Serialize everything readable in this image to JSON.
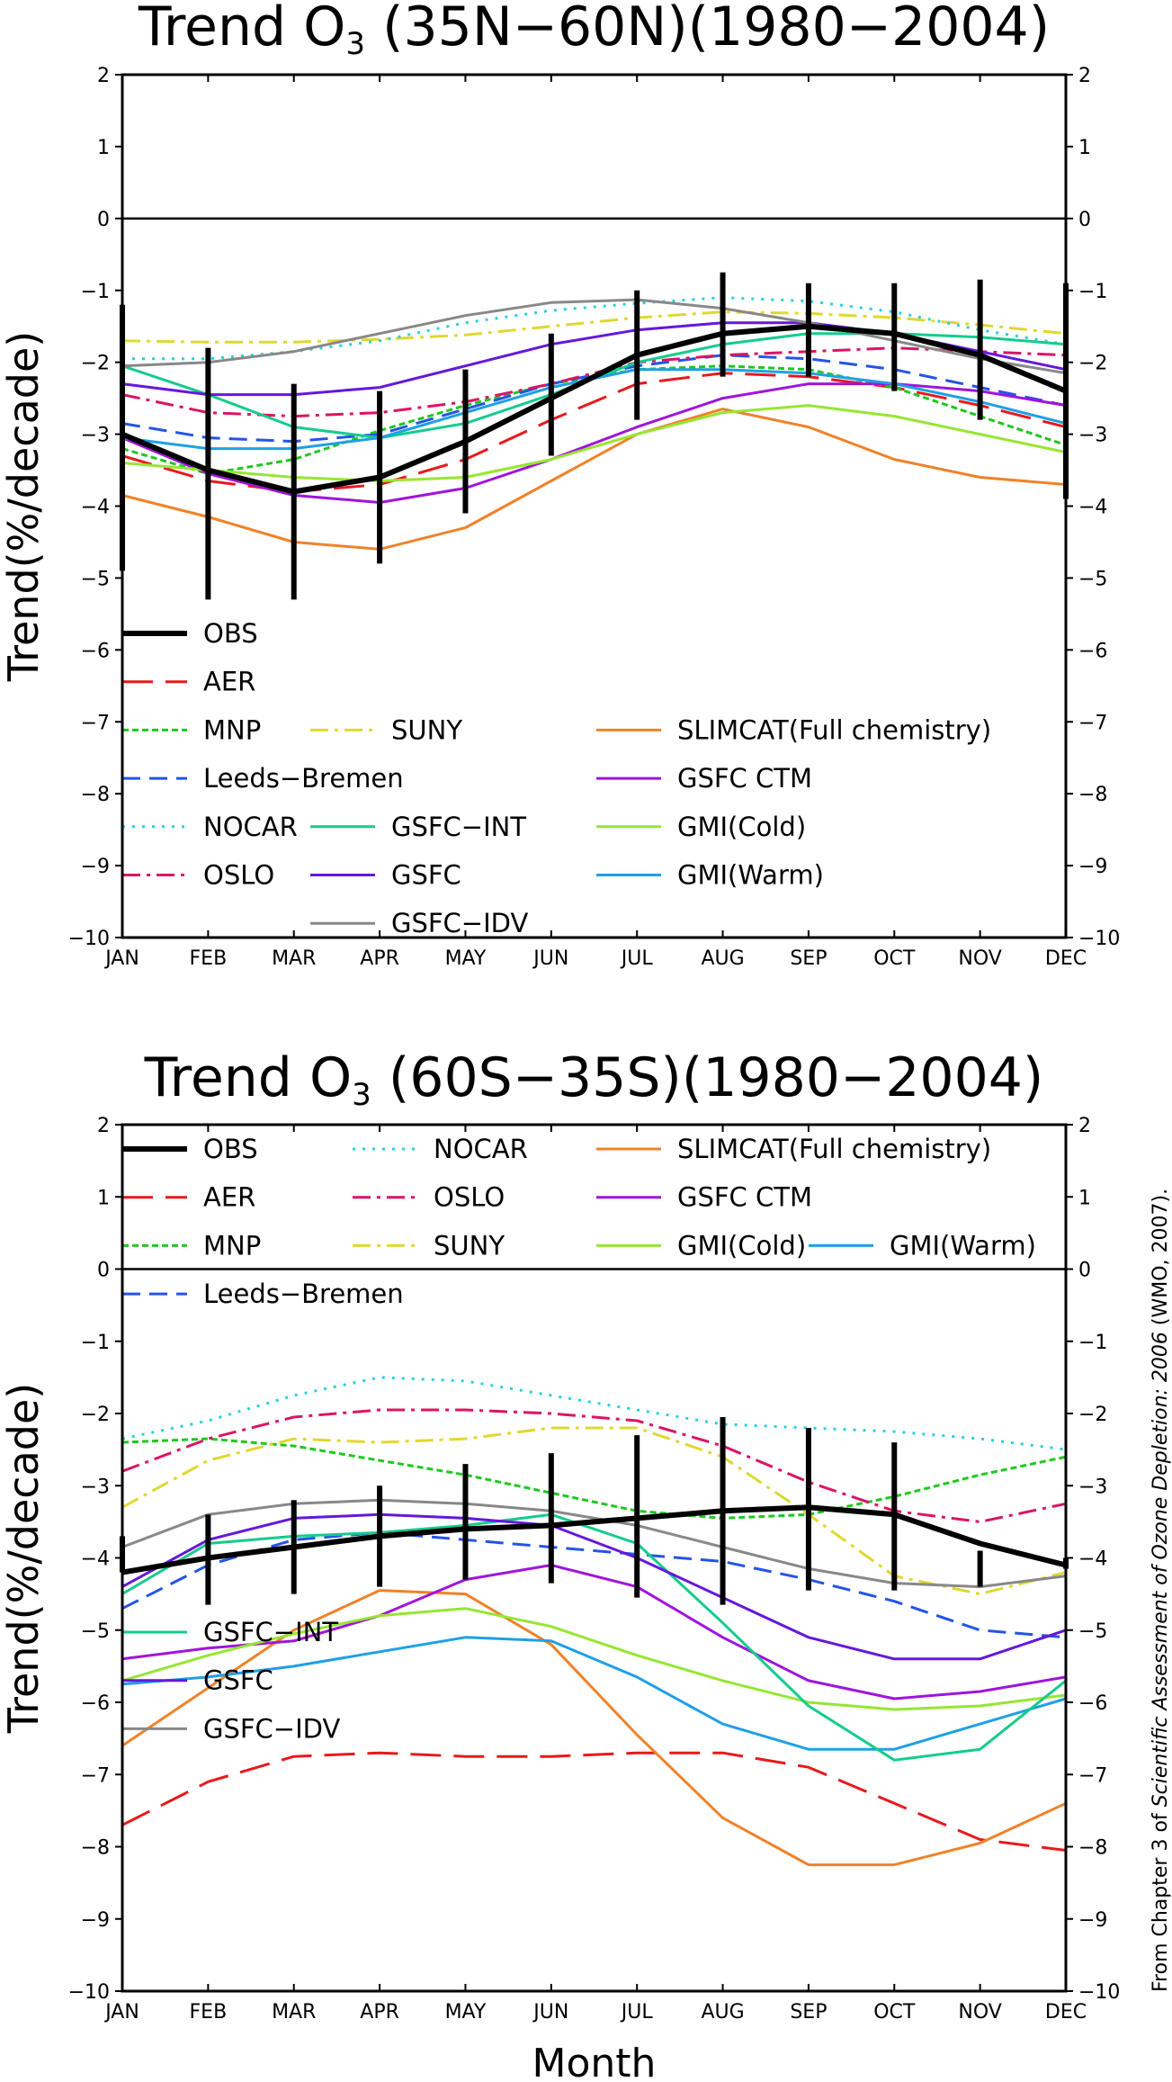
{
  "chart_data": [
    {
      "type": "line",
      "title": "Trend O",
      "title_sub": "3",
      "title_rest": " (35N−60N)(1980−2004)",
      "xlabel": "",
      "ylabel": "Trend(%/decade)",
      "ylim": [
        -10,
        2
      ],
      "yticks": [
        2,
        1,
        0,
        -1,
        -2,
        -3,
        -4,
        -5,
        -6,
        -7,
        -8,
        -9,
        -10
      ],
      "categories": [
        "JAN",
        "FEB",
        "MAR",
        "APR",
        "MAY",
        "JUN",
        "JUL",
        "AUG",
        "SEP",
        "OCT",
        "NOV",
        "DEC"
      ],
      "zero_line": true,
      "series": [
        {
          "name": "OBS",
          "color": "#000000",
          "dash": "solid",
          "width": 6,
          "values": [
            -3.0,
            -3.5,
            -3.8,
            -3.6,
            -3.1,
            -2.5,
            -1.9,
            -1.6,
            -1.5,
            -1.6,
            -1.9,
            -2.4
          ]
        },
        {
          "name": "AER",
          "color": "#e8191c",
          "dash": "long",
          "values": [
            -3.3,
            -3.65,
            -3.8,
            -3.7,
            -3.35,
            -2.8,
            -2.3,
            -2.15,
            -2.2,
            -2.35,
            -2.6,
            -2.9
          ]
        },
        {
          "name": "MNP",
          "color": "#1ec81e",
          "dash": "dense",
          "values": [
            -3.2,
            -3.55,
            -3.35,
            -2.95,
            -2.6,
            -2.3,
            -2.1,
            -2.05,
            -2.1,
            -2.35,
            -2.75,
            -3.15
          ]
        },
        {
          "name": "SUNY",
          "color": "#e0d830",
          "dash": "dashdot",
          "values": [
            -1.7,
            -1.72,
            -1.72,
            -1.68,
            -1.62,
            -1.5,
            -1.38,
            -1.3,
            -1.32,
            -1.38,
            -1.48,
            -1.6
          ]
        },
        {
          "name": "Leeds−Bremen",
          "color": "#2454e8",
          "dash": "medium",
          "values": [
            -2.85,
            -3.05,
            -3.1,
            -3.0,
            -2.65,
            -2.3,
            -2.05,
            -1.9,
            -1.95,
            -2.1,
            -2.35,
            -2.6
          ]
        },
        {
          "name": "NOCAR",
          "color": "#28d2dc",
          "dash": "dot",
          "values": [
            -1.95,
            -1.95,
            -1.85,
            -1.7,
            -1.45,
            -1.28,
            -1.18,
            -1.1,
            -1.15,
            -1.3,
            -1.55,
            -1.75
          ]
        },
        {
          "name": "OSLO",
          "color": "#dc1464",
          "dash": "dashdot",
          "values": [
            -2.45,
            -2.7,
            -2.75,
            -2.7,
            -2.55,
            -2.3,
            -2.0,
            -1.9,
            -1.85,
            -1.8,
            -1.85,
            -1.9
          ]
        },
        {
          "name": "GSFC−INT",
          "color": "#14cc8c",
          "dash": "solid",
          "values": [
            -2.05,
            -2.45,
            -2.9,
            -3.05,
            -2.85,
            -2.45,
            -2.0,
            -1.75,
            -1.6,
            -1.6,
            -1.65,
            -1.75
          ]
        },
        {
          "name": "GSFC",
          "color": "#6418dc",
          "dash": "solid",
          "values": [
            -2.3,
            -2.45,
            -2.45,
            -2.35,
            -2.05,
            -1.75,
            -1.55,
            -1.45,
            -1.45,
            -1.6,
            -1.85,
            -2.1
          ]
        },
        {
          "name": "GSFC−IDV",
          "color": "#888888",
          "dash": "solid",
          "values": [
            -2.05,
            -2.0,
            -1.85,
            -1.6,
            -1.35,
            -1.17,
            -1.13,
            -1.25,
            -1.45,
            -1.7,
            -1.95,
            -2.15
          ]
        },
        {
          "name": "SLIMCAT(Full chemistry)",
          "color": "#f08228",
          "dash": "solid",
          "values": [
            -3.85,
            -4.15,
            -4.5,
            -4.6,
            -4.3,
            -3.65,
            -3.0,
            -2.65,
            -2.9,
            -3.35,
            -3.6,
            -3.7
          ]
        },
        {
          "name": "GSFC CTM",
          "color": "#a014dc",
          "dash": "solid",
          "values": [
            -3.05,
            -3.55,
            -3.85,
            -3.95,
            -3.75,
            -3.35,
            -2.9,
            -2.5,
            -2.3,
            -2.3,
            -2.4,
            -2.6
          ]
        },
        {
          "name": "GMI(Cold)",
          "color": "#96e632",
          "dash": "solid",
          "values": [
            -3.4,
            -3.5,
            -3.6,
            -3.65,
            -3.6,
            -3.35,
            -3.0,
            -2.7,
            -2.6,
            -2.75,
            -3.0,
            -3.25
          ]
        },
        {
          "name": "GMI(Warm)",
          "color": "#1ea0e6",
          "dash": "solid",
          "values": [
            -3.05,
            -3.2,
            -3.2,
            -3.05,
            -2.7,
            -2.35,
            -2.1,
            -2.1,
            -2.15,
            -2.3,
            -2.55,
            -2.85
          ]
        }
      ],
      "error_bars": {
        "series": "OBS",
        "low": [
          -4.9,
          -5.3,
          -5.3,
          -4.8,
          -4.1,
          -3.3,
          -2.8,
          -2.2,
          -2.2,
          -2.4,
          -2.8,
          -3.9
        ],
        "high": [
          -1.2,
          -1.8,
          -2.3,
          -2.4,
          -2.1,
          -1.6,
          -1.0,
          -0.75,
          -0.9,
          -0.9,
          -0.85,
          -0.9
        ]
      },
      "legend": {
        "placement": "bottom-left",
        "entries": [
          {
            "series": "OBS",
            "col": 0,
            "row": 0
          },
          {
            "series": "AER",
            "col": 0,
            "row": 1
          },
          {
            "series": "MNP",
            "col": 0,
            "row": 2
          },
          {
            "series": "Leeds−Bremen",
            "col": 0,
            "row": 3
          },
          {
            "series": "NOCAR",
            "col": 0,
            "row": 4
          },
          {
            "series": "OSLO",
            "col": 0,
            "row": 5
          },
          {
            "series": "SUNY",
            "col": 1,
            "row": 2
          },
          {
            "series": "GSFC−INT",
            "col": 1,
            "row": 4
          },
          {
            "series": "GSFC",
            "col": 1,
            "row": 5
          },
          {
            "series": "GSFC−IDV",
            "col": 1,
            "row": 6
          },
          {
            "series": "SLIMCAT(Full chemistry)",
            "col": 2,
            "row": 2
          },
          {
            "series": "GSFC CTM",
            "col": 2,
            "row": 3
          },
          {
            "series": "GMI(Cold)",
            "col": 2,
            "row": 4
          },
          {
            "series": "GMI(Warm)",
            "col": 2,
            "row": 5
          }
        ]
      }
    },
    {
      "type": "line",
      "title": "Trend O",
      "title_sub": "3",
      "title_rest": " (60S−35S)(1980−2004)",
      "xlabel": "Month",
      "ylabel": "Trend(%/decade)",
      "ylim": [
        -10,
        2
      ],
      "yticks": [
        2,
        1,
        0,
        -1,
        -2,
        -3,
        -4,
        -5,
        -6,
        -7,
        -8,
        -9,
        -10
      ],
      "categories": [
        "JAN",
        "FEB",
        "MAR",
        "APR",
        "MAY",
        "JUN",
        "JUL",
        "AUG",
        "SEP",
        "OCT",
        "NOV",
        "DEC"
      ],
      "zero_line": true,
      "series": [
        {
          "name": "OBS",
          "color": "#000000",
          "dash": "solid",
          "width": 6,
          "values": [
            -4.2,
            -4.0,
            -3.85,
            -3.7,
            -3.6,
            -3.55,
            -3.45,
            -3.35,
            -3.3,
            -3.4,
            -3.8,
            -4.1
          ]
        },
        {
          "name": "AER",
          "color": "#e8191c",
          "dash": "long",
          "values": [
            -7.7,
            -7.1,
            -6.75,
            -6.7,
            -6.75,
            -6.75,
            -6.7,
            -6.7,
            -6.9,
            -7.4,
            -7.9,
            -8.05
          ]
        },
        {
          "name": "MNP",
          "color": "#1ec81e",
          "dash": "dense",
          "values": [
            -2.4,
            -2.35,
            -2.45,
            -2.65,
            -2.85,
            -3.1,
            -3.35,
            -3.45,
            -3.4,
            -3.15,
            -2.85,
            -2.6
          ]
        },
        {
          "name": "Leeds−Bremen",
          "color": "#2454e8",
          "dash": "medium",
          "values": [
            -4.7,
            -4.1,
            -3.75,
            -3.65,
            -3.75,
            -3.85,
            -3.95,
            -4.05,
            -4.3,
            -4.6,
            -5.0,
            -5.1
          ]
        },
        {
          "name": "NOCAR",
          "color": "#28d2dc",
          "dash": "dot",
          "values": [
            -2.35,
            -2.1,
            -1.75,
            -1.5,
            -1.55,
            -1.75,
            -1.95,
            -2.15,
            -2.2,
            -2.25,
            -2.35,
            -2.5
          ]
        },
        {
          "name": "OSLO",
          "color": "#dc1464",
          "dash": "dashdot",
          "values": [
            -2.8,
            -2.35,
            -2.05,
            -1.95,
            -1.95,
            -2.0,
            -2.1,
            -2.45,
            -2.95,
            -3.35,
            -3.5,
            -3.25
          ]
        },
        {
          "name": "SUNY",
          "color": "#e0d830",
          "dash": "dashdot",
          "values": [
            -3.3,
            -2.65,
            -2.35,
            -2.4,
            -2.35,
            -2.2,
            -2.2,
            -2.6,
            -3.4,
            -4.25,
            -4.5,
            -4.2
          ]
        },
        {
          "name": "SLIMCAT(Full chemistry)",
          "color": "#f08228",
          "dash": "solid",
          "values": [
            -6.6,
            -5.8,
            -5.0,
            -4.45,
            -4.5,
            -5.2,
            -6.45,
            -7.6,
            -8.25,
            -8.25,
            -7.95,
            -7.4
          ]
        },
        {
          "name": "GSFC CTM",
          "color": "#a014dc",
          "dash": "solid",
          "values": [
            -5.4,
            -5.25,
            -5.15,
            -4.8,
            -4.3,
            -4.1,
            -4.4,
            -5.1,
            -5.7,
            -5.95,
            -5.85,
            -5.65
          ]
        },
        {
          "name": "GMI(Cold)",
          "color": "#96e632",
          "dash": "solid",
          "values": [
            -5.7,
            -5.35,
            -5.05,
            -4.8,
            -4.7,
            -4.95,
            -5.35,
            -5.7,
            -6.0,
            -6.1,
            -6.05,
            -5.9
          ]
        },
        {
          "name": "GMI(Warm)",
          "color": "#1ea0e6",
          "dash": "solid",
          "values": [
            -5.75,
            -5.65,
            -5.5,
            -5.3,
            -5.1,
            -5.15,
            -5.65,
            -6.3,
            -6.65,
            -6.65,
            -6.3,
            -5.95
          ]
        },
        {
          "name": "GSFC−INT",
          "color": "#14cc8c",
          "dash": "solid",
          "values": [
            -4.5,
            -3.8,
            -3.7,
            -3.65,
            -3.55,
            -3.4,
            -3.8,
            -4.9,
            -6.05,
            -6.8,
            -6.65,
            -5.7
          ]
        },
        {
          "name": "GSFC",
          "color": "#6418dc",
          "dash": "solid",
          "values": [
            -4.4,
            -3.75,
            -3.45,
            -3.4,
            -3.45,
            -3.55,
            -4.0,
            -4.55,
            -5.1,
            -5.4,
            -5.4,
            -5.0
          ]
        },
        {
          "name": "GSFC−IDV",
          "color": "#888888",
          "dash": "solid",
          "values": [
            -3.85,
            -3.4,
            -3.25,
            -3.2,
            -3.25,
            -3.35,
            -3.55,
            -3.85,
            -4.15,
            -4.35,
            -4.4,
            -4.25
          ]
        }
      ],
      "error_bars": {
        "series": "OBS",
        "low": [
          -4.2,
          -4.65,
          -4.5,
          -4.4,
          -4.3,
          -4.35,
          -4.55,
          -4.65,
          -4.45,
          -4.45,
          -4.4,
          -4.15
        ],
        "high": [
          -3.7,
          -3.4,
          -3.2,
          -3.0,
          -2.7,
          -2.55,
          -2.3,
          -2.05,
          -2.2,
          -2.4,
          -3.9,
          -4.0
        ]
      },
      "legend": {
        "placement": "top-left and bottom-left",
        "entries": [
          {
            "series": "OBS",
            "col": 0,
            "row": 0
          },
          {
            "series": "AER",
            "col": 0,
            "row": 1
          },
          {
            "series": "MNP",
            "col": 0,
            "row": 2
          },
          {
            "series": "Leeds−Bremen",
            "col": 0,
            "row": 3
          },
          {
            "series": "NOCAR",
            "col": 1,
            "row": 0
          },
          {
            "series": "OSLO",
            "col": 1,
            "row": 1
          },
          {
            "series": "SUNY",
            "col": 1,
            "row": 2
          },
          {
            "series": "SLIMCAT(Full chemistry)",
            "col": 2,
            "row": 0
          },
          {
            "series": "GSFC CTM",
            "col": 2,
            "row": 1
          },
          {
            "series": "GMI(Cold)",
            "col": 2,
            "row": 2
          },
          {
            "series": "GMI(Warm)",
            "col": 3,
            "row": 2
          },
          {
            "series": "GSFC−INT",
            "col": 0,
            "row": 10
          },
          {
            "series": "GSFC",
            "col": 0,
            "row": 11
          },
          {
            "series": "GSFC−IDV",
            "col": 0,
            "row": 12
          }
        ]
      }
    }
  ],
  "caption": {
    "prefix": "From Chapter 3 of ",
    "italic": "Scientific Assessment of Ozone Depletion: 2006",
    "suffix": " (WMO, 2007)."
  }
}
